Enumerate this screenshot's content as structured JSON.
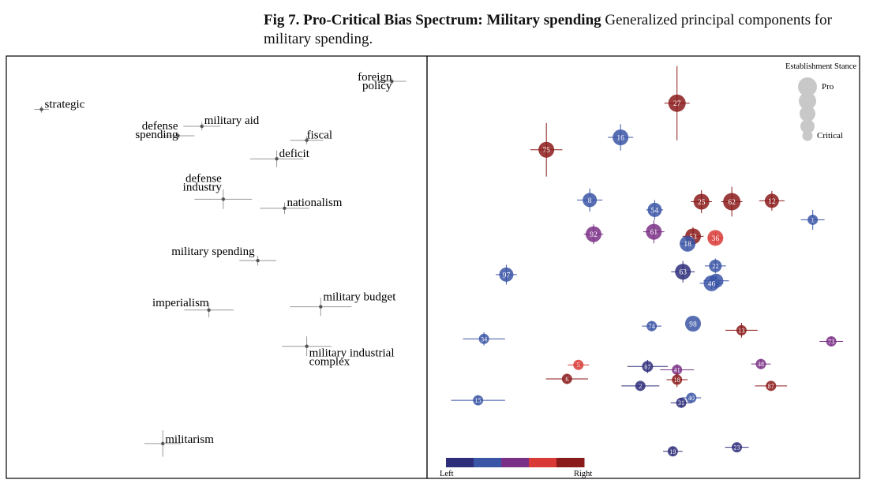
{
  "caption": {
    "label": "Fig 7. Pro-Critical Bias Spectrum: Military spending",
    "text": "Generalized principal components for military spending."
  },
  "colors": {
    "crosshair": "#999999",
    "point": "#555555",
    "scale": [
      "#2e2d7a",
      "#3a55a6",
      "#7a2f86",
      "#d93a36",
      "#8b1a1a"
    ]
  },
  "chart_data": [
    {
      "type": "scatter",
      "panel": "left",
      "xlim": [
        0,
        100
      ],
      "ylim": [
        0,
        100
      ],
      "points": [
        {
          "label": "strategic",
          "x": 7.4,
          "y": 88.4,
          "xerr": 1.8,
          "yerr": 0.8
        },
        {
          "label": "foreign policy",
          "x": 92.6,
          "y": 95.2,
          "xerr": 3.5,
          "yerr": 0.8
        },
        {
          "label": "military aid",
          "x": 46.4,
          "y": 84.3,
          "xerr": 4.5,
          "yerr": 1.0
        },
        {
          "label": "defense spending",
          "x": 40.6,
          "y": 82.0,
          "xerr": 4.0,
          "yerr": 0.8
        },
        {
          "label": "fiscal",
          "x": 71.9,
          "y": 80.9,
          "xerr": 4.0,
          "yerr": 1.0
        },
        {
          "label": "deficit",
          "x": 64.6,
          "y": 76.4,
          "xerr": 6.5,
          "yerr": 2.0
        },
        {
          "label": "defense industry",
          "x": 51.6,
          "y": 66.6,
          "xerr": 7.0,
          "yerr": 2.4
        },
        {
          "label": "nationalism",
          "x": 66.5,
          "y": 64.4,
          "xerr": 6.0,
          "yerr": 1.4
        },
        {
          "label": "military spending",
          "x": 60.0,
          "y": 51.7,
          "xerr": 4.5,
          "yerr": 1.2
        },
        {
          "label": "imperialism",
          "x": 48.1,
          "y": 39.7,
          "xerr": 6.0,
          "yerr": 1.8
        },
        {
          "label": "military budget",
          "x": 75.3,
          "y": 40.5,
          "xerr": 7.5,
          "yerr": 2.2
        },
        {
          "label": "military industrial complex",
          "x": 71.9,
          "y": 30.9,
          "xerr": 6.0,
          "yerr": 2.4
        },
        {
          "label": "militarism",
          "x": 36.9,
          "y": 7.3,
          "xerr": 4.5,
          "yerr": 3.2
        }
      ]
    },
    {
      "type": "scatter",
      "panel": "right",
      "xlim": [
        0,
        100
      ],
      "ylim": [
        0,
        100
      ],
      "legend": {
        "title": "Establishment Stance",
        "pro": "Pro",
        "critical": "Critical",
        "sizes": [
          12,
          11,
          10,
          9,
          6.5
        ]
      },
      "colorbar": {
        "left": "Left",
        "right": "Right"
      },
      "points": [
        {
          "label": "27",
          "x": 58.0,
          "y": 89.9,
          "size": 11,
          "lean": 4,
          "xerr": 3.0,
          "yerr": 9.0
        },
        {
          "label": "75",
          "x": 27.0,
          "y": 78.6,
          "size": 10,
          "lean": 4,
          "xerr": 3.8,
          "yerr": 6.5
        },
        {
          "label": "16",
          "x": 44.6,
          "y": 81.6,
          "size": 10,
          "lean": 1,
          "xerr": 3.0,
          "yerr": 3.2
        },
        {
          "label": "8",
          "x": 37.3,
          "y": 66.4,
          "size": 9,
          "lean": 1,
          "xerr": 3.0,
          "yerr": 2.8
        },
        {
          "label": "54",
          "x": 52.7,
          "y": 64.0,
          "size": 9,
          "lean": 1,
          "xerr": 2.0,
          "yerr": 2.4
        },
        {
          "label": "25",
          "x": 63.8,
          "y": 66.0,
          "size": 10,
          "lean": 4,
          "xerr": 2.5,
          "yerr": 2.8
        },
        {
          "label": "62",
          "x": 71.0,
          "y": 66.0,
          "size": 11,
          "lean": 4,
          "xerr": 2.5,
          "yerr": 3.6
        },
        {
          "label": "12",
          "x": 80.5,
          "y": 66.2,
          "size": 9,
          "lean": 4,
          "xerr": 3.0,
          "yerr": 2.4
        },
        {
          "label": "1",
          "x": 90.2,
          "y": 61.6,
          "size": 6.5,
          "lean": 1,
          "xerr": 2.8,
          "yerr": 2.4
        },
        {
          "label": "92",
          "x": 38.2,
          "y": 58.1,
          "size": 10,
          "lean": 2,
          "xerr": 2.3,
          "yerr": 2.4
        },
        {
          "label": "61",
          "x": 52.5,
          "y": 58.7,
          "size": 10,
          "lean": 2,
          "xerr": 2.5,
          "yerr": 2.8
        },
        {
          "label": "53",
          "x": 61.8,
          "y": 57.6,
          "size": 10,
          "lean": 4,
          "xerr": 2.5,
          "yerr": 2.2
        },
        {
          "label": "36",
          "x": 67.1,
          "y": 57.2,
          "size": 10,
          "lean": 3,
          "xerr": 1.8,
          "yerr": 1.4
        },
        {
          "label": "18",
          "x": 60.5,
          "y": 55.8,
          "size": 10,
          "lean": 1,
          "xerr": 1.8,
          "yerr": 1.6
        },
        {
          "label": "97",
          "x": 17.5,
          "y": 48.3,
          "size": 9,
          "lean": 1,
          "xerr": 2.5,
          "yerr": 2.4
        },
        {
          "label": "63",
          "x": 59.4,
          "y": 49.0,
          "size": 10,
          "lean": 0,
          "xerr": 2.8,
          "yerr": 2.6
        },
        {
          "label": "22",
          "x": 67.1,
          "y": 50.4,
          "size": 8,
          "lean": 1,
          "xerr": 2.5,
          "yerr": 1.8
        },
        {
          "label": "4",
          "x": 67.3,
          "y": 46.8,
          "size": 9,
          "lean": 1,
          "xerr": 3.0,
          "yerr": 1.4
        },
        {
          "label": "46",
          "x": 66.2,
          "y": 46.2,
          "size": 10,
          "lean": 1,
          "xerr": 2.8,
          "yerr": 1.4
        },
        {
          "label": "98",
          "x": 61.8,
          "y": 36.4,
          "size": 10,
          "lean": 1,
          "xerr": 0.5,
          "yerr": 0.5
        },
        {
          "label": "74",
          "x": 52.0,
          "y": 35.8,
          "size": 6.5,
          "lean": 1,
          "xerr": 2.3,
          "yerr": 1.2
        },
        {
          "label": "13",
          "x": 73.3,
          "y": 34.8,
          "size": 6.5,
          "lean": 4,
          "xerr": 3.8,
          "yerr": 1.8
        },
        {
          "label": "34",
          "x": 12.2,
          "y": 32.7,
          "size": 6.5,
          "lean": 1,
          "xerr": 5.0,
          "yerr": 1.6
        },
        {
          "label": "73",
          "x": 94.6,
          "y": 32.1,
          "size": 6.5,
          "lean": 2,
          "xerr": 2.8,
          "yerr": 1.2
        },
        {
          "label": "5",
          "x": 34.6,
          "y": 26.4,
          "size": 6.5,
          "lean": 3,
          "xerr": 2.5,
          "yerr": 0.8
        },
        {
          "label": "67",
          "x": 51.0,
          "y": 26.0,
          "size": 7,
          "lean": 0,
          "xerr": 4.8,
          "yerr": 1.6
        },
        {
          "label": "41",
          "x": 58.0,
          "y": 25.2,
          "size": 6.5,
          "lean": 2,
          "xerr": 4.0,
          "yerr": 1.4
        },
        {
          "label": "48",
          "x": 77.9,
          "y": 26.6,
          "size": 6.5,
          "lean": 2,
          "xerr": 2.3,
          "yerr": 1.2
        },
        {
          "label": "6",
          "x": 31.9,
          "y": 23.0,
          "size": 6.5,
          "lean": 4,
          "xerr": 5.0,
          "yerr": 1.2
        },
        {
          "label": "18",
          "x": 58.0,
          "y": 22.8,
          "size": 6.5,
          "lean": 4,
          "xerr": 2.5,
          "yerr": 1.8
        },
        {
          "label": "2",
          "x": 49.3,
          "y": 21.3,
          "size": 6.5,
          "lean": 0,
          "xerr": 4.5,
          "yerr": 0.8
        },
        {
          "label": "87",
          "x": 80.3,
          "y": 21.3,
          "size": 6.5,
          "lean": 4,
          "xerr": 3.8,
          "yerr": 0.8
        },
        {
          "label": "15",
          "x": 10.8,
          "y": 17.8,
          "size": 6.5,
          "lean": 1,
          "xerr": 6.4,
          "yerr": 1.2
        },
        {
          "label": "40",
          "x": 61.4,
          "y": 18.4,
          "size": 6.5,
          "lean": 1,
          "xerr": 2.3,
          "yerr": 0.8
        },
        {
          "label": "31",
          "x": 59.0,
          "y": 17.2,
          "size": 6.5,
          "lean": 0,
          "xerr": 2.5,
          "yerr": 1.2
        },
        {
          "label": "19",
          "x": 57.0,
          "y": 5.4,
          "size": 6.5,
          "lean": 0,
          "xerr": 2.3,
          "yerr": 1.0
        },
        {
          "label": "23",
          "x": 72.2,
          "y": 6.4,
          "size": 6.5,
          "lean": 0,
          "xerr": 2.8,
          "yerr": 0.8
        }
      ]
    }
  ]
}
